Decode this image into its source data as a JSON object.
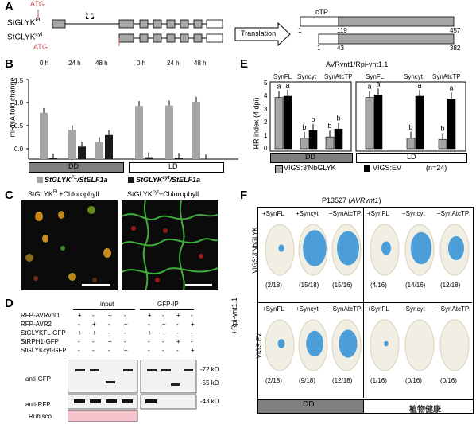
{
  "panels": {
    "a": "A",
    "b": "B",
    "c": "C",
    "d": "D",
    "e": "E",
    "f": "F"
  },
  "panelA": {
    "atg_label": "ATG",
    "gene_fl": "StGLYK",
    "gene_fl_sup": "FL",
    "gene_cyt": "StGLYK",
    "gene_cyt_sup": "cyt",
    "marker_b": "b",
    "marker_c": "c",
    "translation": "Translation",
    "ctp": "cTP",
    "protein_fl": {
      "start": "1",
      "cut": "119",
      "end": "457"
    },
    "protein_cyt": {
      "start": "1",
      "cut": "43",
      "end": "382"
    }
  },
  "panelB": {
    "ylabel": "mRNA fold change",
    "yticks": [
      "0.0",
      "0.5",
      "1.0",
      "1.5"
    ],
    "timepoints": [
      "0 h",
      "24 h",
      "48 h",
      "0 h",
      "24 h",
      "48 h"
    ],
    "dd_label": "DD",
    "ld_label": "LD",
    "legend_fl": "StGLYK",
    "legend_fl_sup": "FL",
    "legend_fl_suffix": "/StELF1a",
    "legend_cyt": "StGLYK",
    "legend_cyt_sup": "cyt",
    "legend_cyt_suffix": "/StELF1a",
    "colors": {
      "fl": "#a6a6a6",
      "cyt": "#1a1a1a"
    }
  },
  "chart_data": [
    {
      "type": "bar",
      "title": "",
      "ylabel": "mRNA fold change",
      "ylim": [
        0,
        1.5
      ],
      "categories": [
        "DD 0 h",
        "DD 24 h",
        "DD 48 h",
        "LD 0 h",
        "LD 24 h",
        "LD 48 h"
      ],
      "series": [
        {
          "name": "StGLYKFL/StELF1a",
          "values": [
            1.0,
            0.63,
            0.37,
            1.15,
            1.16,
            1.24
          ]
        },
        {
          "name": "StGLYKcyt/StELF1a",
          "values": [
            0.02,
            0.27,
            0.52,
            0.04,
            0.03,
            0.0
          ]
        }
      ]
    },
    {
      "type": "bar",
      "title": "AVRvnt1/Rpi-vnt1.1",
      "ylabel": "HR index (4 dpi)",
      "ylim": [
        0,
        5
      ],
      "categories": [
        "DD SynFL",
        "DD Syncyt",
        "DD SynAtcTP",
        "LD SynFL",
        "LD Syncyt",
        "LD SynAtcTP"
      ],
      "series": [
        {
          "name": "VIGS:3'NbGLYK",
          "values": [
            3.9,
            0.8,
            0.9,
            3.9,
            0.8,
            0.7
          ]
        },
        {
          "name": "VIGS:EV",
          "values": [
            4.0,
            1.4,
            1.5,
            4.1,
            4.0,
            3.8
          ]
        }
      ],
      "significance": [
        [
          "a",
          "a"
        ],
        [
          "b",
          "b"
        ],
        [
          "b",
          "b"
        ],
        [
          "a",
          "a"
        ],
        [
          "b",
          "a"
        ],
        [
          "b",
          "a"
        ]
      ]
    }
  ],
  "panelC": {
    "left_title": "StGLYK",
    "left_sup": "FL",
    "left_suffix": "+Chlorophyll",
    "right_title": "StGLYK",
    "right_sup": "cyt",
    "right_suffix": "+Chlorophyll"
  },
  "panelD": {
    "input_label": "input",
    "ip_label": "GFP-IP",
    "rows": [
      {
        "label": "RFP-AVRvnt1",
        "marks": [
          "+",
          "-",
          "+",
          "-",
          "+",
          "-",
          "+",
          "-"
        ]
      },
      {
        "label": "RFP-AVR2",
        "marks": [
          "-",
          "+",
          "-",
          "+",
          "-",
          "+",
          "-",
          "+"
        ]
      },
      {
        "label": "StGLYKFL-GFP",
        "marks": [
          "+",
          "+",
          "-",
          "-",
          "+",
          "+",
          "-",
          "-"
        ]
      },
      {
        "label": "StRPH1-GFP",
        "marks": [
          "-",
          "-",
          "+",
          "-",
          "-",
          "-",
          "+",
          "-"
        ]
      },
      {
        "label": "StGLYKcyt-GFP",
        "marks": [
          "-",
          "-",
          "-",
          "+",
          "-",
          "-",
          "-",
          "+"
        ]
      }
    ],
    "anti_gfp": "anti-GFP",
    "anti_rfp": "anti-RFP",
    "rubisco": "Rubisco",
    "kd_72": "-72 kD",
    "kd_55": "-55 kD",
    "kd_43": "-43 kD"
  },
  "panelE": {
    "title": "AVRvnt1/Rpi-vnt1.1",
    "ylabel": "HR index (4 dpi)",
    "yticks": [
      "0",
      "1",
      "2",
      "3",
      "4",
      "5"
    ],
    "groups": [
      "SynFL",
      "Syncyt",
      "SynAtcTP",
      "SynFL",
      "Syncyt",
      "SynAtcTP"
    ],
    "dd_label": "DD",
    "ld_label": "LD",
    "legend_grey": "VIGS:3'NbGLYK",
    "legend_black": "VIGS:EV",
    "legend_n": "(n=24)",
    "colors": {
      "grey": "#a6a6a6",
      "black": "#000000"
    }
  },
  "panelF": {
    "title": "P13527 (",
    "title_italic": "AVRvnt1",
    "title_close": ")",
    "side_label": "+Rpi-vnt1.1",
    "row1_label": "VIGS:3'NbGLYK",
    "row2_label": "VIGS:EV",
    "col_labels": [
      "+SynFL",
      "+Syncyt",
      "+SynAtcTP",
      "+SynFL",
      "+Syncyt",
      "+SynAtcTP"
    ],
    "row1_counts": [
      "(2/18)",
      "(15/18)",
      "(15/16)",
      "(4/16)",
      "(14/16)",
      "(12/18)"
    ],
    "row2_counts": [
      "(2/18)",
      "(9/18)",
      "(12/18)",
      "(1/16)",
      "(0/16)",
      "(0/16)"
    ],
    "dd_label": "DD",
    "watermark": "植物健康"
  }
}
